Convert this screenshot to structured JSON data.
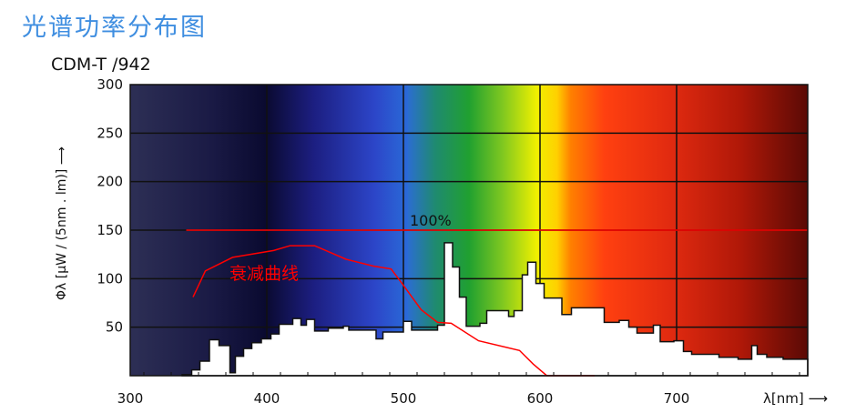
{
  "header": {
    "title": "光谱功率分布图",
    "subtitle": "CDM-T /942"
  },
  "chart_data": {
    "type": "area",
    "title": "光谱功率分布图",
    "subtitle": "CDM-T /942",
    "xlabel": "λ[nm] ⟶",
    "ylabel": "Φλ [μW / (5nm . lm)] ⟶",
    "xlim": [
      300,
      796
    ],
    "ylim": [
      0,
      300
    ],
    "xticks": [
      300,
      400,
      500,
      600,
      700
    ],
    "yticks": [
      50,
      100,
      150,
      200,
      250,
      300
    ],
    "grid": true,
    "background": "visible spectrum color gradient",
    "series": [
      {
        "type": "step",
        "x": [
          338,
          345,
          351,
          358,
          365,
          373,
          377,
          383,
          389,
          396,
          403,
          409,
          419,
          425,
          429,
          435,
          445,
          456,
          460,
          480,
          485,
          500,
          506,
          525,
          530,
          536,
          541,
          546,
          556,
          561,
          577,
          581,
          587,
          591,
          597,
          603,
          616,
          623,
          647,
          658,
          665,
          671,
          683,
          688,
          698,
          705,
          711,
          731,
          745,
          755,
          759,
          766,
          778
        ],
        "values": [
          1,
          6,
          15,
          37,
          31,
          3,
          20,
          28,
          34,
          38,
          43,
          53,
          59,
          52,
          58,
          46,
          49,
          51,
          47,
          38,
          45,
          56,
          47,
          52,
          137,
          112,
          81,
          51,
          54,
          67,
          61,
          67,
          104,
          117,
          95,
          80,
          63,
          70,
          55,
          57,
          50,
          44,
          52,
          35,
          36,
          25,
          22,
          19,
          17,
          31,
          22,
          19,
          17
        ],
        "x_end": 796,
        "color": "#ffffff"
      },
      {
        "type": "line",
        "name": "衰减曲线",
        "x": [
          346,
          355,
          375,
          405,
          417,
          435,
          458,
          478,
          491,
          498,
          513,
          525,
          535,
          555,
          585,
          595,
          605,
          640
        ],
        "values": [
          81,
          108,
          122,
          129,
          134,
          134,
          120,
          113,
          110,
          97,
          68,
          55,
          54,
          36,
          26,
          12,
          0,
          0
        ],
        "color": "#ff0000"
      },
      {
        "type": "line",
        "name": "100%",
        "x": [
          341,
          796
        ],
        "values": [
          150,
          150
        ],
        "color": "#ff0000"
      }
    ],
    "annotations": [
      "100%",
      "衰减曲线"
    ]
  }
}
